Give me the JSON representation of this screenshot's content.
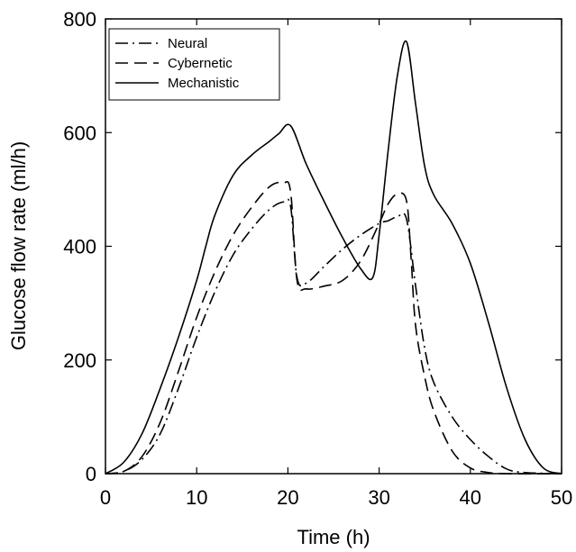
{
  "chart_data": {
    "type": "line",
    "xlabel": "Time (h)",
    "ylabel": "Glucose flow rate (ml/h)",
    "xlim": [
      0,
      50
    ],
    "ylim": [
      0,
      800
    ],
    "xticks": [
      0,
      10,
      20,
      30,
      40,
      50
    ],
    "yticks": [
      0,
      200,
      400,
      600,
      800
    ],
    "grid": false,
    "legend": "top-left",
    "series": [
      {
        "name": "Neural",
        "dash": "dash-dot",
        "color": "#000000",
        "x": [
          0,
          2,
          4,
          6,
          8,
          10,
          12,
          14,
          16,
          18,
          19.5,
          20.3,
          21,
          22,
          24,
          26,
          28,
          30,
          31,
          32,
          33,
          34,
          35,
          36,
          38,
          40,
          42,
          44,
          46,
          50
        ],
        "y": [
          0,
          4,
          25,
          70,
          150,
          240,
          320,
          385,
          430,
          465,
          478,
          470,
          345,
          335,
          365,
          395,
          420,
          440,
          445,
          452,
          448,
          330,
          220,
          160,
          100,
          60,
          30,
          8,
          2,
          0
        ]
      },
      {
        "name": "Cybernetic",
        "dash": "dashed",
        "color": "#000000",
        "x": [
          0,
          2,
          4,
          6,
          8,
          10,
          12,
          14,
          16,
          18,
          19.5,
          20.3,
          21,
          22,
          24,
          26,
          28,
          30,
          31,
          32,
          33,
          33.5,
          34,
          35,
          36,
          38,
          40,
          42,
          44,
          50
        ],
        "y": [
          0,
          4,
          30,
          90,
          180,
          275,
          355,
          420,
          468,
          505,
          512,
          495,
          340,
          325,
          330,
          340,
          375,
          440,
          475,
          492,
          480,
          380,
          260,
          170,
          110,
          40,
          10,
          2,
          0,
          0
        ]
      },
      {
        "name": "Mechanistic",
        "dash": "solid",
        "color": "#000000",
        "x": [
          0,
          2,
          4,
          6,
          8,
          10,
          11,
          12,
          14,
          16,
          18,
          19,
          20.3,
          22,
          24,
          26,
          28,
          29.3,
          30,
          31,
          32,
          33,
          34,
          35,
          36,
          38,
          40,
          42,
          44,
          46,
          48,
          50
        ],
        "y": [
          0,
          20,
          70,
          150,
          240,
          340,
          400,
          455,
          525,
          560,
          585,
          598,
          612,
          545,
          478,
          415,
          360,
          345,
          420,
          570,
          700,
          760,
          650,
          540,
          490,
          440,
          370,
          265,
          150,
          60,
          10,
          0
        ]
      }
    ]
  }
}
